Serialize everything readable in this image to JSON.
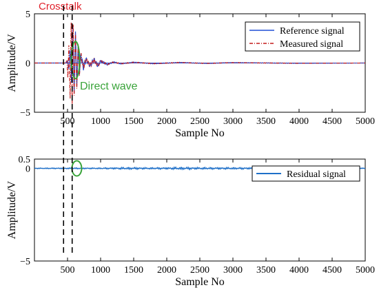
{
  "chart_data": [
    {
      "type": "line",
      "xlabel": "Sample No",
      "ylabel": "Amplitude/V",
      "xlim": [
        0,
        5000
      ],
      "ylim": [
        -5,
        5
      ],
      "xticks": [
        500,
        1000,
        1500,
        2000,
        2500,
        3000,
        3500,
        4000,
        4500,
        5000
      ],
      "xtick_labels": [
        "500",
        "1000",
        "1500",
        "2000",
        "2500",
        "3000",
        "3500",
        "4000",
        "4500",
        "5000"
      ],
      "yticks": [
        5,
        0,
        -5
      ],
      "ytick_labels": [
        "5",
        "0",
        "−5"
      ],
      "legend_position": "top-right",
      "series": [
        {
          "name": "Reference signal",
          "color": "#1f4fd6",
          "style": "solid",
          "points": [
            [
              0,
              0
            ],
            [
              470,
              0
            ],
            [
              500,
              0.2
            ],
            [
              520,
              -0.6
            ],
            [
              540,
              1.3
            ],
            [
              560,
              -2.0
            ],
            [
              580,
              3.6
            ],
            [
              600,
              -3.1
            ],
            [
              620,
              3.2
            ],
            [
              640,
              -2.4
            ],
            [
              660,
              1.8
            ],
            [
              680,
              -1.2
            ],
            [
              700,
              0.9
            ],
            [
              740,
              -0.5
            ],
            [
              780,
              0.4
            ],
            [
              840,
              -0.3
            ],
            [
              900,
              0.35
            ],
            [
              960,
              -0.3
            ],
            [
              1000,
              0.2
            ],
            [
              1100,
              -0.15
            ],
            [
              1200,
              0.1
            ],
            [
              1300,
              -0.08
            ],
            [
              1500,
              0.07
            ],
            [
              1800,
              -0.06
            ],
            [
              2200,
              0.05
            ],
            [
              2600,
              -0.04
            ],
            [
              3000,
              0.04
            ],
            [
              4000,
              -0.03
            ],
            [
              5000,
              0
            ]
          ]
        },
        {
          "name": "Measured signal",
          "color": "#c41a1a",
          "style": "dashdot",
          "points": [
            [
              0,
              0
            ],
            [
              470,
              0
            ],
            [
              490,
              0.3
            ],
            [
              505,
              -1.5
            ],
            [
              520,
              1.8
            ],
            [
              540,
              -3.6
            ],
            [
              555,
              4.1
            ],
            [
              570,
              -4.2
            ],
            [
              585,
              3.9
            ],
            [
              600,
              -3.3
            ],
            [
              620,
              3.0
            ],
            [
              640,
              -2.6
            ],
            [
              660,
              1.9
            ],
            [
              680,
              -1.3
            ],
            [
              700,
              0.9
            ],
            [
              740,
              -0.5
            ],
            [
              780,
              0.4
            ],
            [
              840,
              -0.3
            ],
            [
              900,
              0.35
            ],
            [
              960,
              -0.3
            ],
            [
              1000,
              0.2
            ],
            [
              1100,
              -0.15
            ],
            [
              1200,
              0.1
            ],
            [
              1300,
              -0.08
            ],
            [
              1500,
              0.07
            ],
            [
              1800,
              -0.06
            ],
            [
              2200,
              0.05
            ],
            [
              2600,
              -0.04
            ],
            [
              3000,
              0.04
            ],
            [
              4000,
              -0.03
            ],
            [
              5000,
              0
            ]
          ]
        }
      ],
      "annotations": [
        {
          "text": "Crosstalk",
          "color": "#e0202a"
        },
        {
          "text": "Direct wave",
          "color": "#3aa43a"
        }
      ]
    },
    {
      "type": "line",
      "xlabel": "Sample No",
      "ylabel": "Amplitude/V",
      "xlim": [
        0,
        5000
      ],
      "ylim": [
        -5,
        0.5
      ],
      "xticks": [
        500,
        1000,
        1500,
        2000,
        2500,
        3000,
        3500,
        4000,
        4500,
        5000
      ],
      "xtick_labels": [
        "500",
        "1000",
        "1500",
        "2000",
        "2500",
        "3000",
        "3500",
        "4000",
        "4500",
        "5000"
      ],
      "yticks": [
        0.5,
        0,
        -5
      ],
      "ytick_labels": [
        "0.5",
        "0",
        "−5"
      ],
      "legend_position": "top-right",
      "series": [
        {
          "name": "Residual signal",
          "color": "#1e6fc8",
          "style": "solid",
          "amplitude_envelope": [
            [
              0,
              0.02
            ],
            [
              600,
              0.03
            ],
            [
              1000,
              0.03
            ],
            [
              1300,
              0.05
            ],
            [
              1450,
              0.06
            ],
            [
              1700,
              0.04
            ],
            [
              2000,
              0.05
            ],
            [
              2200,
              0.07
            ],
            [
              2500,
              0.05
            ],
            [
              3000,
              0.05
            ],
            [
              3500,
              0.04
            ],
            [
              4000,
              0.03
            ],
            [
              4500,
              0.02
            ],
            [
              5000,
              0.02
            ]
          ]
        }
      ],
      "annotations": []
    }
  ]
}
